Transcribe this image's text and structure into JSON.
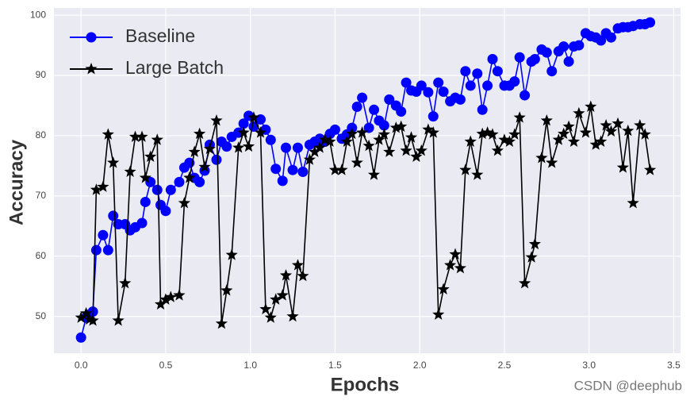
{
  "chart_data": {
    "type": "line",
    "xlabel": "Epochs",
    "ylabel": "Accuracy",
    "x": [
      0,
      0.03,
      0.05,
      0.07,
      0.09,
      0.13,
      0.16,
      0.19,
      0.22,
      0.26,
      0.29,
      0.32,
      0.36,
      0.38,
      0.41,
      0.45,
      0.47,
      0.5,
      0.53,
      0.58,
      0.61,
      0.64,
      0.67,
      0.7,
      0.73,
      0.76,
      0.8,
      0.83,
      0.86,
      0.89,
      0.93,
      0.96,
      0.99,
      1.02,
      1.06,
      1.09,
      1.12,
      1.15,
      1.19,
      1.21,
      1.25,
      1.28,
      1.31,
      1.35,
      1.38,
      1.41,
      1.44,
      1.47,
      1.5,
      1.54,
      1.57,
      1.6,
      1.63,
      1.66,
      1.7,
      1.73,
      1.76,
      1.79,
      1.82,
      1.86,
      1.89,
      1.92,
      1.95,
      1.98,
      2.01,
      2.05,
      2.08,
      2.11,
      2.14,
      2.18,
      2.21,
      2.24,
      2.27,
      2.3,
      2.34,
      2.37,
      2.4,
      2.43,
      2.46,
      2.5,
      2.53,
      2.56,
      2.59,
      2.62,
      2.66,
      2.68,
      2.72,
      2.75,
      2.78,
      2.82,
      2.85,
      2.88,
      2.91,
      2.94,
      2.98,
      3.01,
      3.04,
      3.07,
      3.1,
      3.13,
      3.17,
      3.2,
      3.23,
      3.26,
      3.3,
      3.33,
      3.36
    ],
    "series": [
      {
        "name": "Baseline",
        "color": "#0000ff",
        "marker": "circle",
        "values": [
          46.5,
          49.8,
          50.3,
          50.8,
          61,
          63.5,
          61,
          66.7,
          65.3,
          65.3,
          64.3,
          64.8,
          65.5,
          69,
          72.3,
          71,
          68.5,
          67.5,
          71,
          72.3,
          74.7,
          75.5,
          73,
          72.3,
          74.2,
          78.5,
          76,
          79,
          78.2,
          79.8,
          80.5,
          82,
          83.3,
          81.5,
          82.7,
          81,
          79.3,
          74.5,
          72.5,
          78,
          74.3,
          78,
          74,
          78.5,
          79,
          79.5,
          79,
          80.3,
          81,
          79.5,
          80.2,
          81.3,
          84.8,
          86.3,
          81.3,
          84.3,
          82.5,
          81.7,
          86,
          85,
          84,
          88.8,
          87.5,
          87.3,
          88.3,
          87.2,
          83.2,
          88.8,
          87.3,
          85.7,
          86.3,
          86,
          90.7,
          88.3,
          90.3,
          84.3,
          88.3,
          92.7,
          90.7,
          88.3,
          88.3,
          89,
          93,
          86.7,
          92.3,
          92.7,
          94.3,
          93.8,
          90.7,
          94,
          94.8,
          92.3,
          94.8,
          95,
          97,
          96.5,
          96.3,
          95.8,
          97,
          96.3,
          97.8,
          98,
          98,
          98.2,
          98.5,
          98.5,
          98.8
        ]
      },
      {
        "name": "Large Batch",
        "color": "#000000",
        "marker": "star",
        "values": [
          49.8,
          50.5,
          49.5,
          49.3,
          71,
          71.5,
          80.2,
          75.5,
          49.3,
          55.5,
          74,
          79.8,
          79.8,
          73,
          76.5,
          79.3,
          52,
          52.8,
          53.2,
          53.5,
          68.8,
          73,
          77.3,
          80.3,
          74.8,
          77.8,
          82.5,
          48.8,
          54.3,
          60.2,
          78,
          80.5,
          78.2,
          83,
          80.5,
          51.2,
          49.8,
          52.8,
          53.5,
          56.8,
          50,
          58.5,
          56.7,
          76,
          77.3,
          78,
          79.3,
          79,
          74.3,
          74.3,
          79,
          80.3,
          75.5,
          80.5,
          78.3,
          73.5,
          79.3,
          80.2,
          77.3,
          81.3,
          81.5,
          77.5,
          79.7,
          76.5,
          77.5,
          81,
          80.5,
          50.3,
          54.5,
          58.5,
          60.3,
          58,
          74.3,
          79,
          73.5,
          80.3,
          80.5,
          80.2,
          77.5,
          79.3,
          79,
          80.2,
          83,
          55.5,
          59.8,
          62,
          76.3,
          82.5,
          75.5,
          79.3,
          80.3,
          81.5,
          79,
          83.7,
          80.5,
          84.8,
          78.5,
          79,
          81.7,
          80.7,
          82,
          74.7,
          80.8,
          68.8,
          81.7,
          80.2,
          74.3
        ]
      }
    ],
    "xlim": [
      -0.16,
      3.54
    ],
    "ylim": [
      43.9,
      101.2
    ],
    "xticks": [
      {
        "value": 0,
        "label": "0.0"
      },
      0.5,
      {
        "value": 1,
        "label": "1.0"
      },
      1.5,
      {
        "value": 2,
        "label": "2.0"
      },
      2.5,
      {
        "value": 3,
        "label": "3.0"
      },
      3.5
    ],
    "yticks": [
      50,
      60,
      70,
      80,
      90,
      100
    ],
    "grid": true,
    "legend": "upper left",
    "watermark": "CSDN @deephub"
  }
}
